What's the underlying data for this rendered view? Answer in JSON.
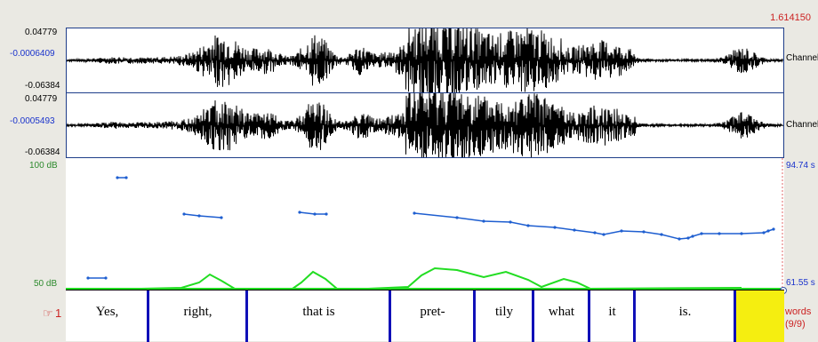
{
  "time": {
    "end_value": "1.614150"
  },
  "channels": [
    {
      "max": "0.04779",
      "zero": "-0.0006409",
      "min": "-0.06384",
      "name": "Channel"
    },
    {
      "max": "0.04779",
      "zero": "-0.0005493",
      "min": "-0.06384",
      "name": "Channel"
    }
  ],
  "spectro": {
    "db_top": "100 dB",
    "db_bottom": "50 dB",
    "right_top": "94.74 s",
    "right_bottom": "61.55 s"
  },
  "tier": {
    "marker_icon": "pointing-hand-icon",
    "number": "1",
    "name": "words",
    "count": "(9/9)",
    "words": [
      "Yes,",
      "right,",
      "that is",
      "pret-",
      "tily",
      "what",
      "it",
      "is."
    ]
  },
  "colors": {
    "pitch": "#1e5ed0",
    "intensity": "#22dd22",
    "selection": "#f5ee10",
    "boundary": "#1010b8",
    "panel_border": "#1f3e8a"
  }
}
